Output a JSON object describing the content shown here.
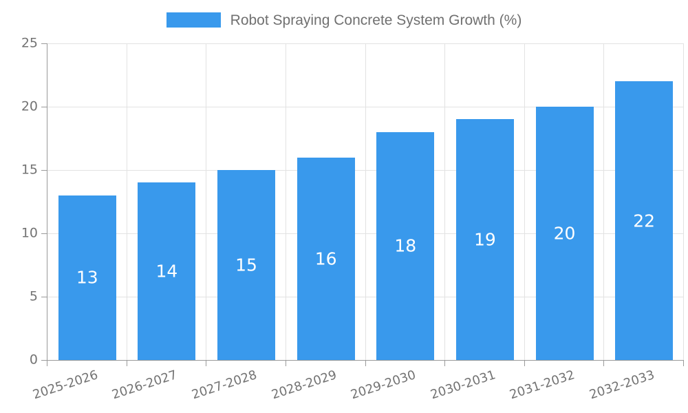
{
  "legend": {
    "label": "Robot Spraying Concrete System Growth (%)"
  },
  "chart_data": {
    "type": "bar",
    "title": "Robot Spraying Concrete System Growth (%)",
    "categories": [
      "2025-2026",
      "2026-2027",
      "2027-2028",
      "2028-2029",
      "2029-2030",
      "2030-2031",
      "2031-2032",
      "2032-2033"
    ],
    "values": [
      13,
      14,
      15,
      16,
      18,
      19,
      20,
      22
    ],
    "xlabel": "",
    "ylabel": "",
    "ylim": [
      0,
      25
    ],
    "yticks": [
      0,
      5,
      10,
      15,
      20,
      25
    ],
    "grid": true,
    "legend_position": "top",
    "value_labels": "inside-center",
    "x_label_rotation_deg": -18,
    "colors": {
      "bar": "#3999EC",
      "value_label": "#FFFFFF",
      "axis_line": "#999999",
      "gridline": "#E2E2E2",
      "tick_text": "#737373",
      "legend_text": "#707070"
    }
  }
}
